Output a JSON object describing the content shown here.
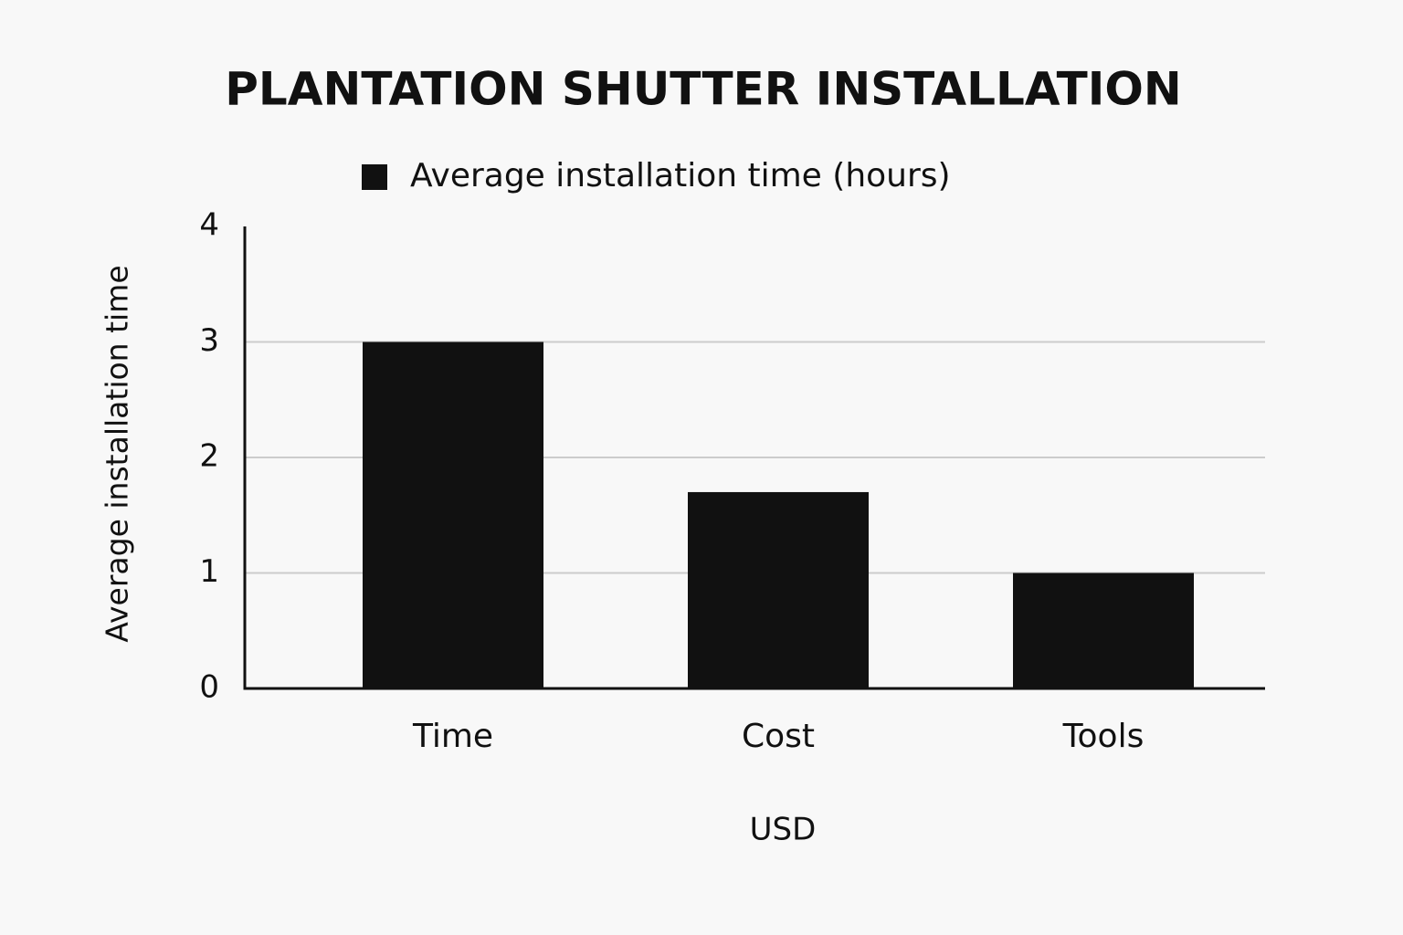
{
  "chart_data": {
    "type": "bar",
    "title": "PLANTATION SHUTTER INSTALLATION",
    "categories": [
      "Time",
      "Cost",
      "Tools"
    ],
    "series": [
      {
        "name": "Average installation time (hours)",
        "color": "#111111",
        "values": [
          3,
          1.7,
          1
        ]
      }
    ],
    "x_label": "USD",
    "y_label": "Average installation time",
    "ylim": [
      0,
      4
    ],
    "yticks": [
      0,
      1,
      2,
      3,
      4
    ],
    "grid": true,
    "legend": "top"
  }
}
